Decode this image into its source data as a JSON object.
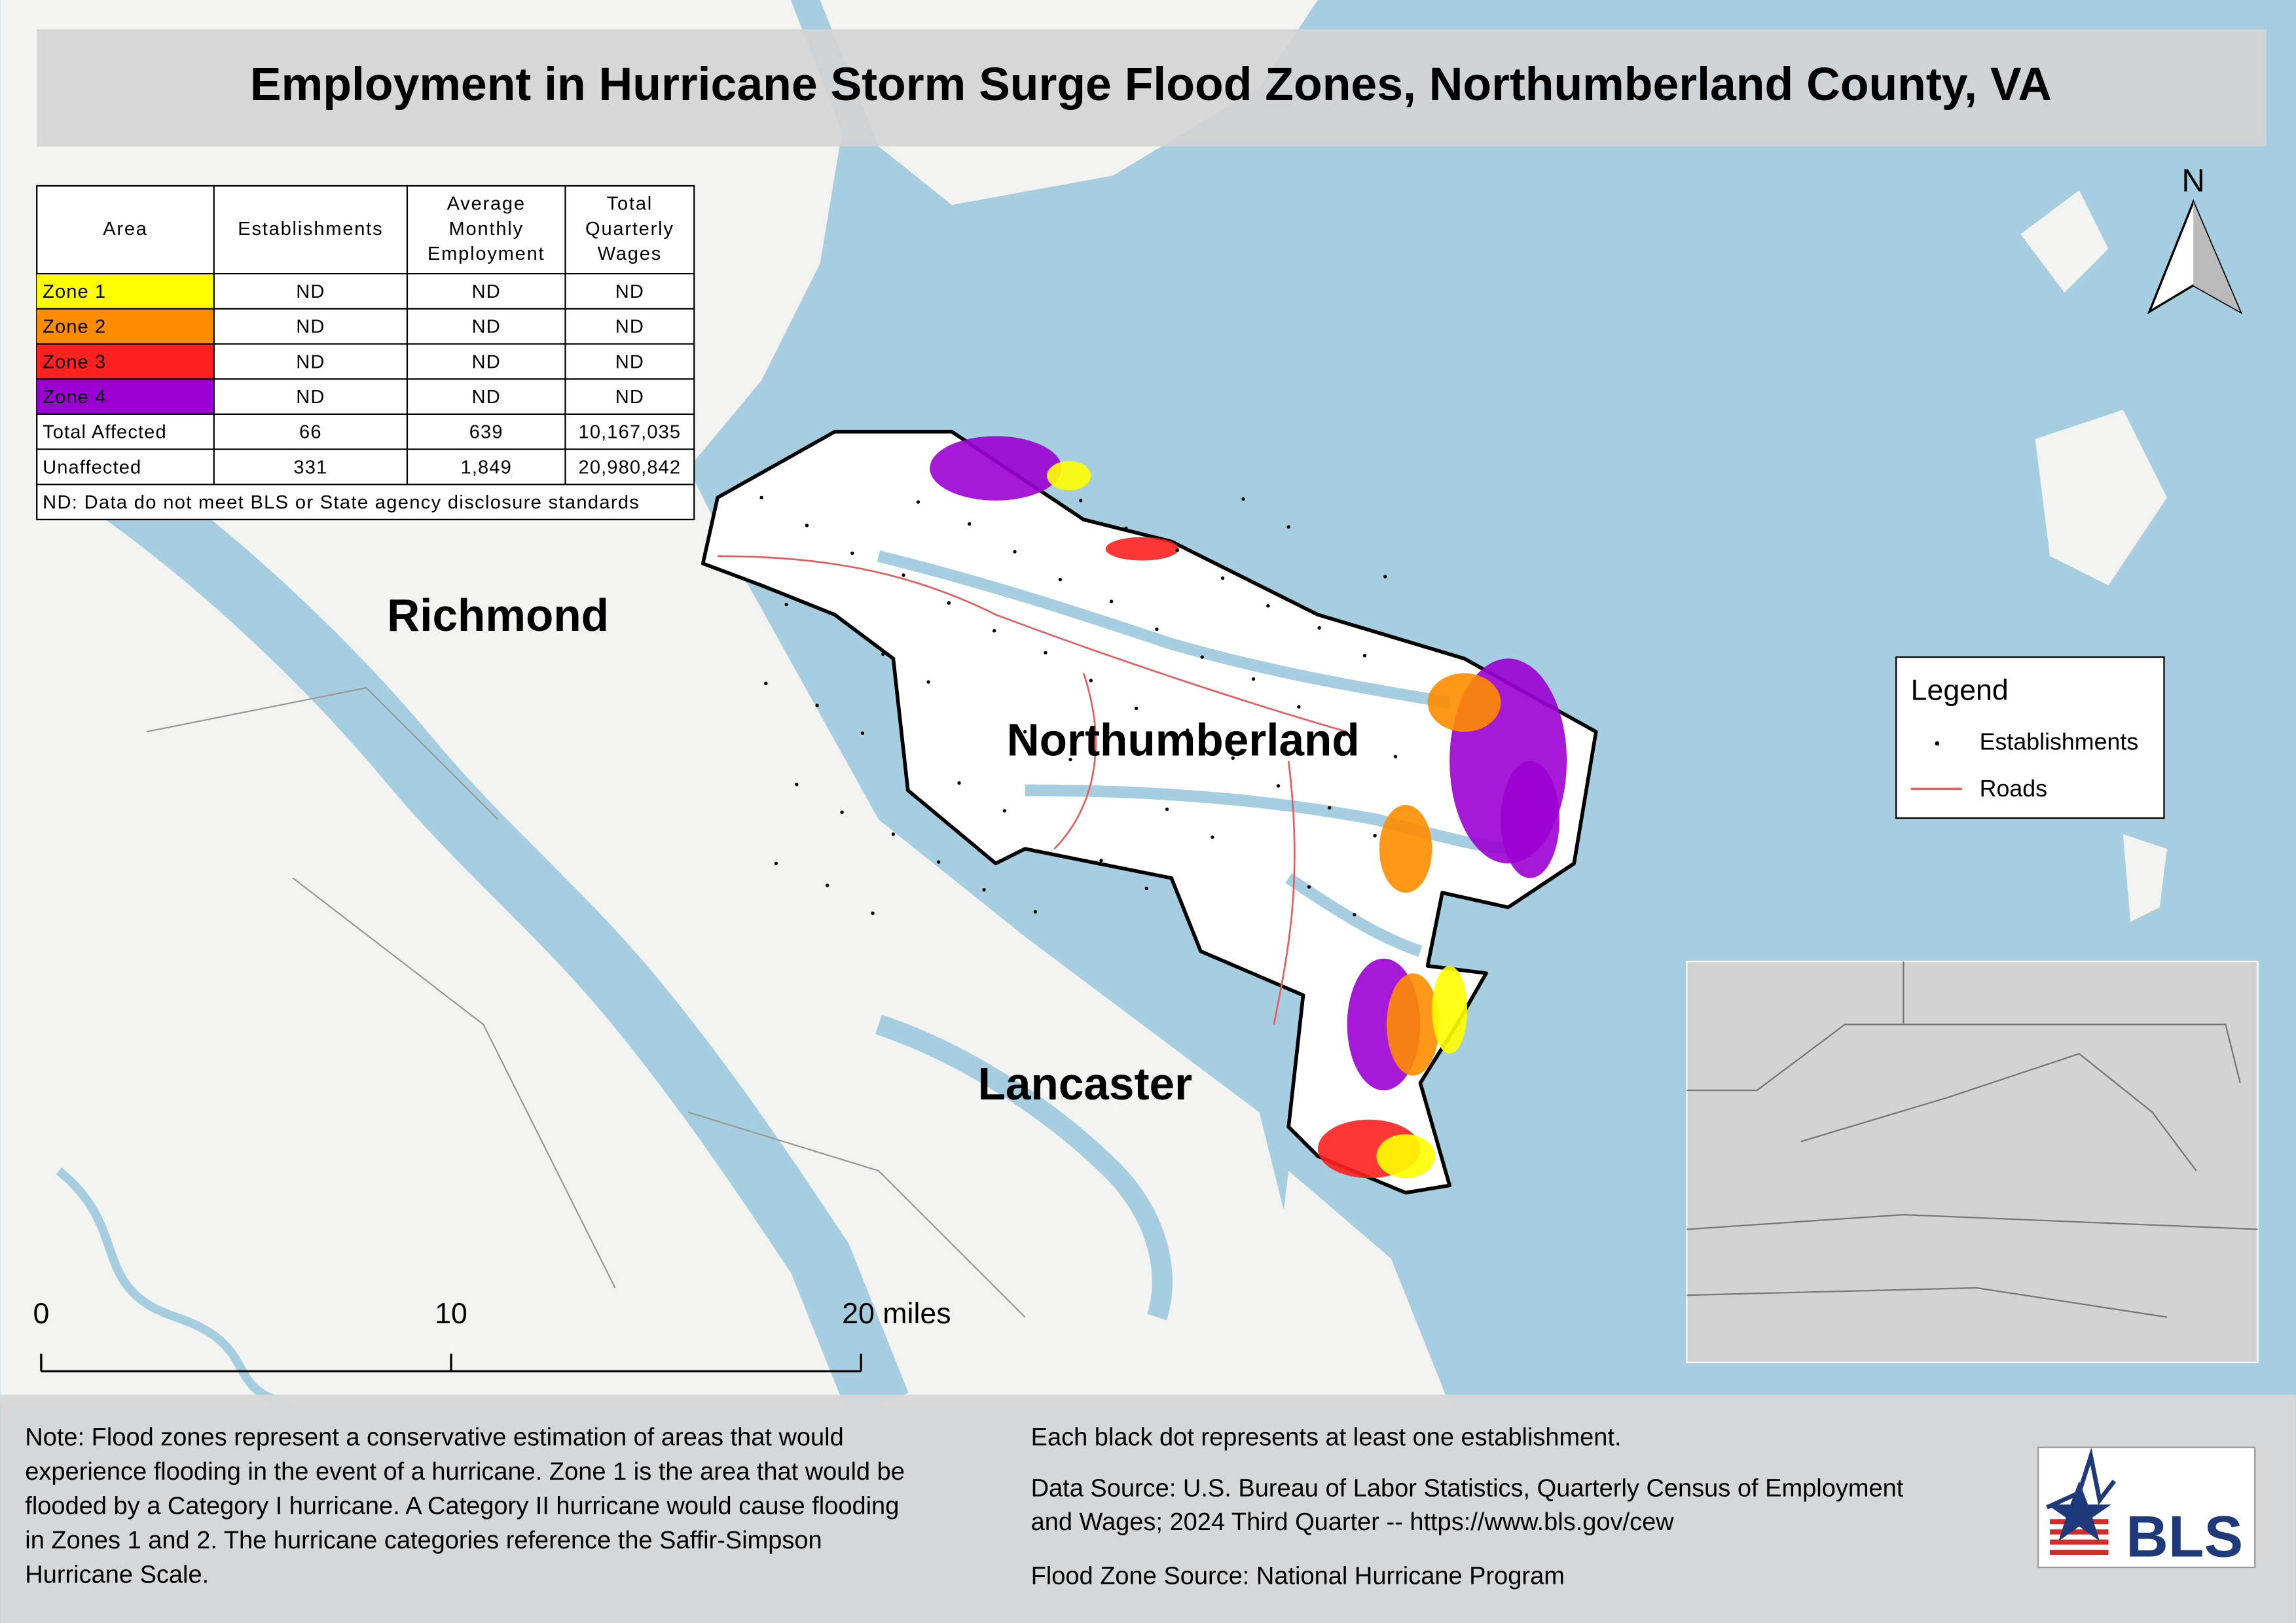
{
  "title": "Employment in Hurricane Storm Surge Flood Zones, Northumberland County, VA",
  "table": {
    "header": [
      [
        "Area"
      ],
      [
        "Establishments"
      ],
      [
        "Average",
        "Monthly",
        "Employment"
      ],
      [
        "Total",
        "Quarterly",
        "Wages"
      ]
    ],
    "rows": [
      [
        "Zone 1",
        "ND",
        "ND",
        "ND"
      ],
      [
        "Zone 2",
        "ND",
        "ND",
        "ND"
      ],
      [
        "Zone 3",
        "ND",
        "ND",
        "ND"
      ],
      [
        "Zone 4",
        "ND",
        "ND",
        "ND"
      ],
      [
        "Total Affected",
        "66",
        "639",
        "10,167,035"
      ],
      [
        "Unaffected",
        "331",
        "1,849",
        "20,980,842"
      ]
    ],
    "footnote": "ND: Data do not meet BLS or State agency disclosure standards"
  },
  "map_labels": [
    "Richmond",
    "Northumberland",
    "Lancaster"
  ],
  "north_label": "N",
  "scale_bar": [
    "0",
    "10",
    "20 miles"
  ],
  "legend": {
    "title": "Legend",
    "items": [
      "Establishments",
      "Roads"
    ]
  },
  "notes": {
    "left": [
      "Note: Flood zones represent a conservative estimation of areas that would",
      "experience flooding in the event of a hurricane. Zone 1 is the area that would be",
      "flooded by a Category I hurricane. A Category II hurricane would cause flooding",
      "in Zones 1 and 2. The hurricane categories reference the Saffir-Simpson",
      "Hurricane Scale."
    ],
    "right": [
      "Each black dot represents at least one establishment.",
      "Data Source: U.S. Bureau of Labor Statistics, Quarterly Census of Employment",
      "and Wages; 2024 Third Quarter -- https://www.bls.gov/cew",
      "Flood Zone Source: National Hurricane Program"
    ]
  },
  "logo": "BLS"
}
